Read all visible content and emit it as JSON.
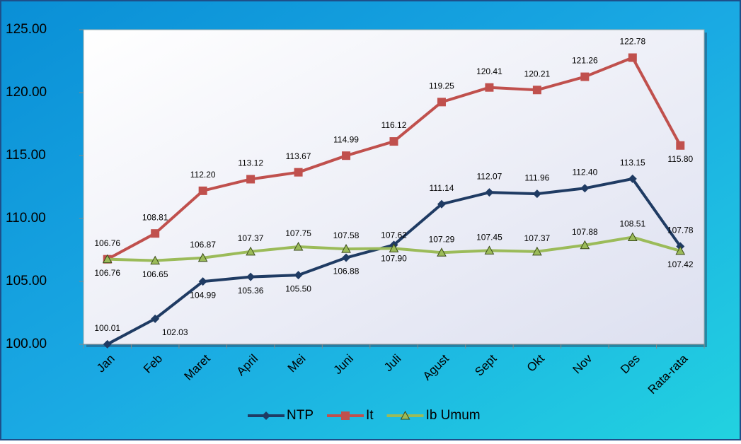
{
  "chart_data": {
    "type": "line",
    "categories": [
      "Jan",
      "Feb",
      "Maret",
      "April",
      "Mei",
      "Juni",
      "Juli",
      "Agust",
      "Sept",
      "Okt",
      "Nov",
      "Des",
      "Rata-rata"
    ],
    "series": [
      {
        "name": "NTP",
        "color": "#1f3b63",
        "marker": "diamond",
        "values": [
          100.01,
          102.03,
          104.99,
          105.36,
          105.5,
          106.88,
          107.9,
          111.14,
          112.07,
          111.96,
          112.4,
          113.15,
          107.78
        ],
        "value_labels": [
          "100.01",
          "102.03",
          "104.99",
          "105.36",
          "105.50",
          "106.88",
          "107.90",
          "111.14",
          "112.07",
          "111.96",
          "112.40",
          "113.15",
          "107.78"
        ]
      },
      {
        "name": "It",
        "color": "#c0504d",
        "marker": "square",
        "values": [
          106.76,
          108.81,
          112.2,
          113.12,
          113.67,
          114.99,
          116.12,
          119.25,
          120.41,
          120.21,
          121.26,
          122.78,
          115.8
        ],
        "value_labels": [
          "106.76",
          "108.81",
          "112.20",
          "113.12",
          "113.67",
          "114.99",
          "116.12",
          "119.25",
          "120.41",
          "120.21",
          "121.26",
          "122.78",
          "115.80"
        ]
      },
      {
        "name": "Ib Umum",
        "color": "#9bbb59",
        "marker": "triangle",
        "values": [
          106.76,
          106.65,
          106.87,
          107.37,
          107.75,
          107.58,
          107.62,
          107.29,
          107.45,
          107.37,
          107.88,
          108.51,
          107.42
        ],
        "value_labels": [
          "106.76",
          "106.65",
          "106.87",
          "107.37",
          "107.75",
          "107.58",
          "107.62",
          "107.29",
          "107.45",
          "107.37",
          "107.88",
          "108.51",
          "107.42"
        ]
      }
    ],
    "ylim": [
      100,
      125
    ],
    "yticks": [
      {
        "value": 100,
        "label": "100.00"
      },
      {
        "value": 105,
        "label": "105.00"
      },
      {
        "value": 110,
        "label": "110.00"
      },
      {
        "value": 115,
        "label": "115.00"
      },
      {
        "value": 120,
        "label": "120.00"
      },
      {
        "value": 125,
        "label": "125.00"
      }
    ],
    "legend": "bottom"
  }
}
